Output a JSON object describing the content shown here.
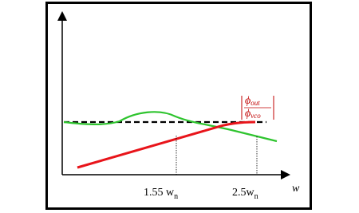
{
  "axis": {
    "x_label": "w"
  },
  "markers": [
    {
      "label": "1.55 w",
      "subscript": "n"
    },
    {
      "label": "2.5w",
      "subscript": "n"
    }
  ],
  "curve_label": {
    "numerator": "ϕ",
    "numerator_subscript": "out",
    "denominator": "ϕ",
    "denominator_subscript": "vco"
  }
}
